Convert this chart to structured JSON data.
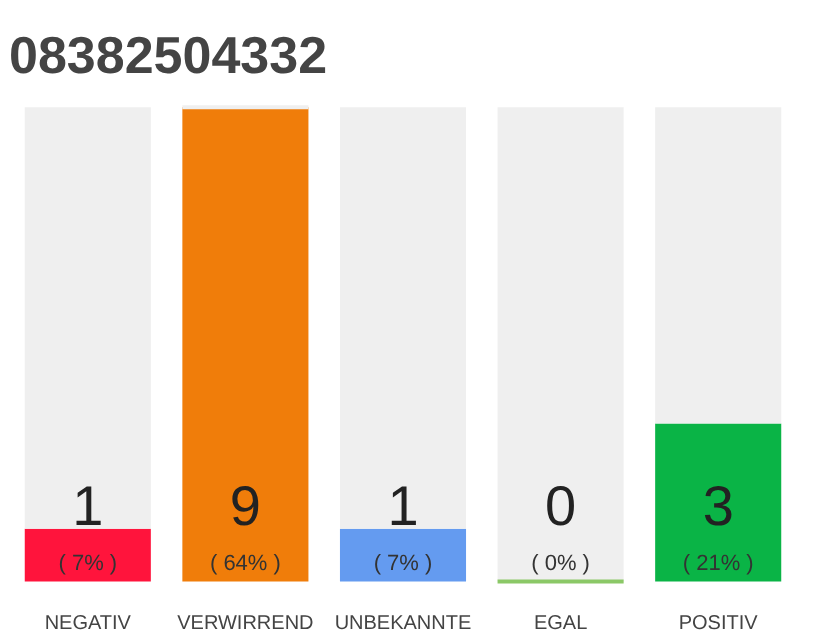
{
  "chart_data": {
    "type": "bar",
    "title": "08382504332",
    "stacked": true,
    "categories": [
      "NEGATIV",
      "VERWIRREND",
      "UNBEKANNTE",
      "EGAL",
      "POSITIV"
    ],
    "series": [
      {
        "colors": [
          "#ff143c",
          "#f07d0a",
          "#649bf0",
          "#8bc867",
          "#0ab446"
        ],
        "values": [
          1,
          9,
          1,
          0,
          3
        ],
        "value_labels": [
          "1\n( 7% )",
          "9\n( 64% )",
          "1\n( 7% )",
          "0\n( 0% )",
          "3\n( 21% )"
        ]
      },
      {
        "color": "#efefef",
        "values": [
          8,
          0,
          8,
          9,
          6
        ]
      }
    ],
    "tick_labels": "x",
    "grid": false
  }
}
